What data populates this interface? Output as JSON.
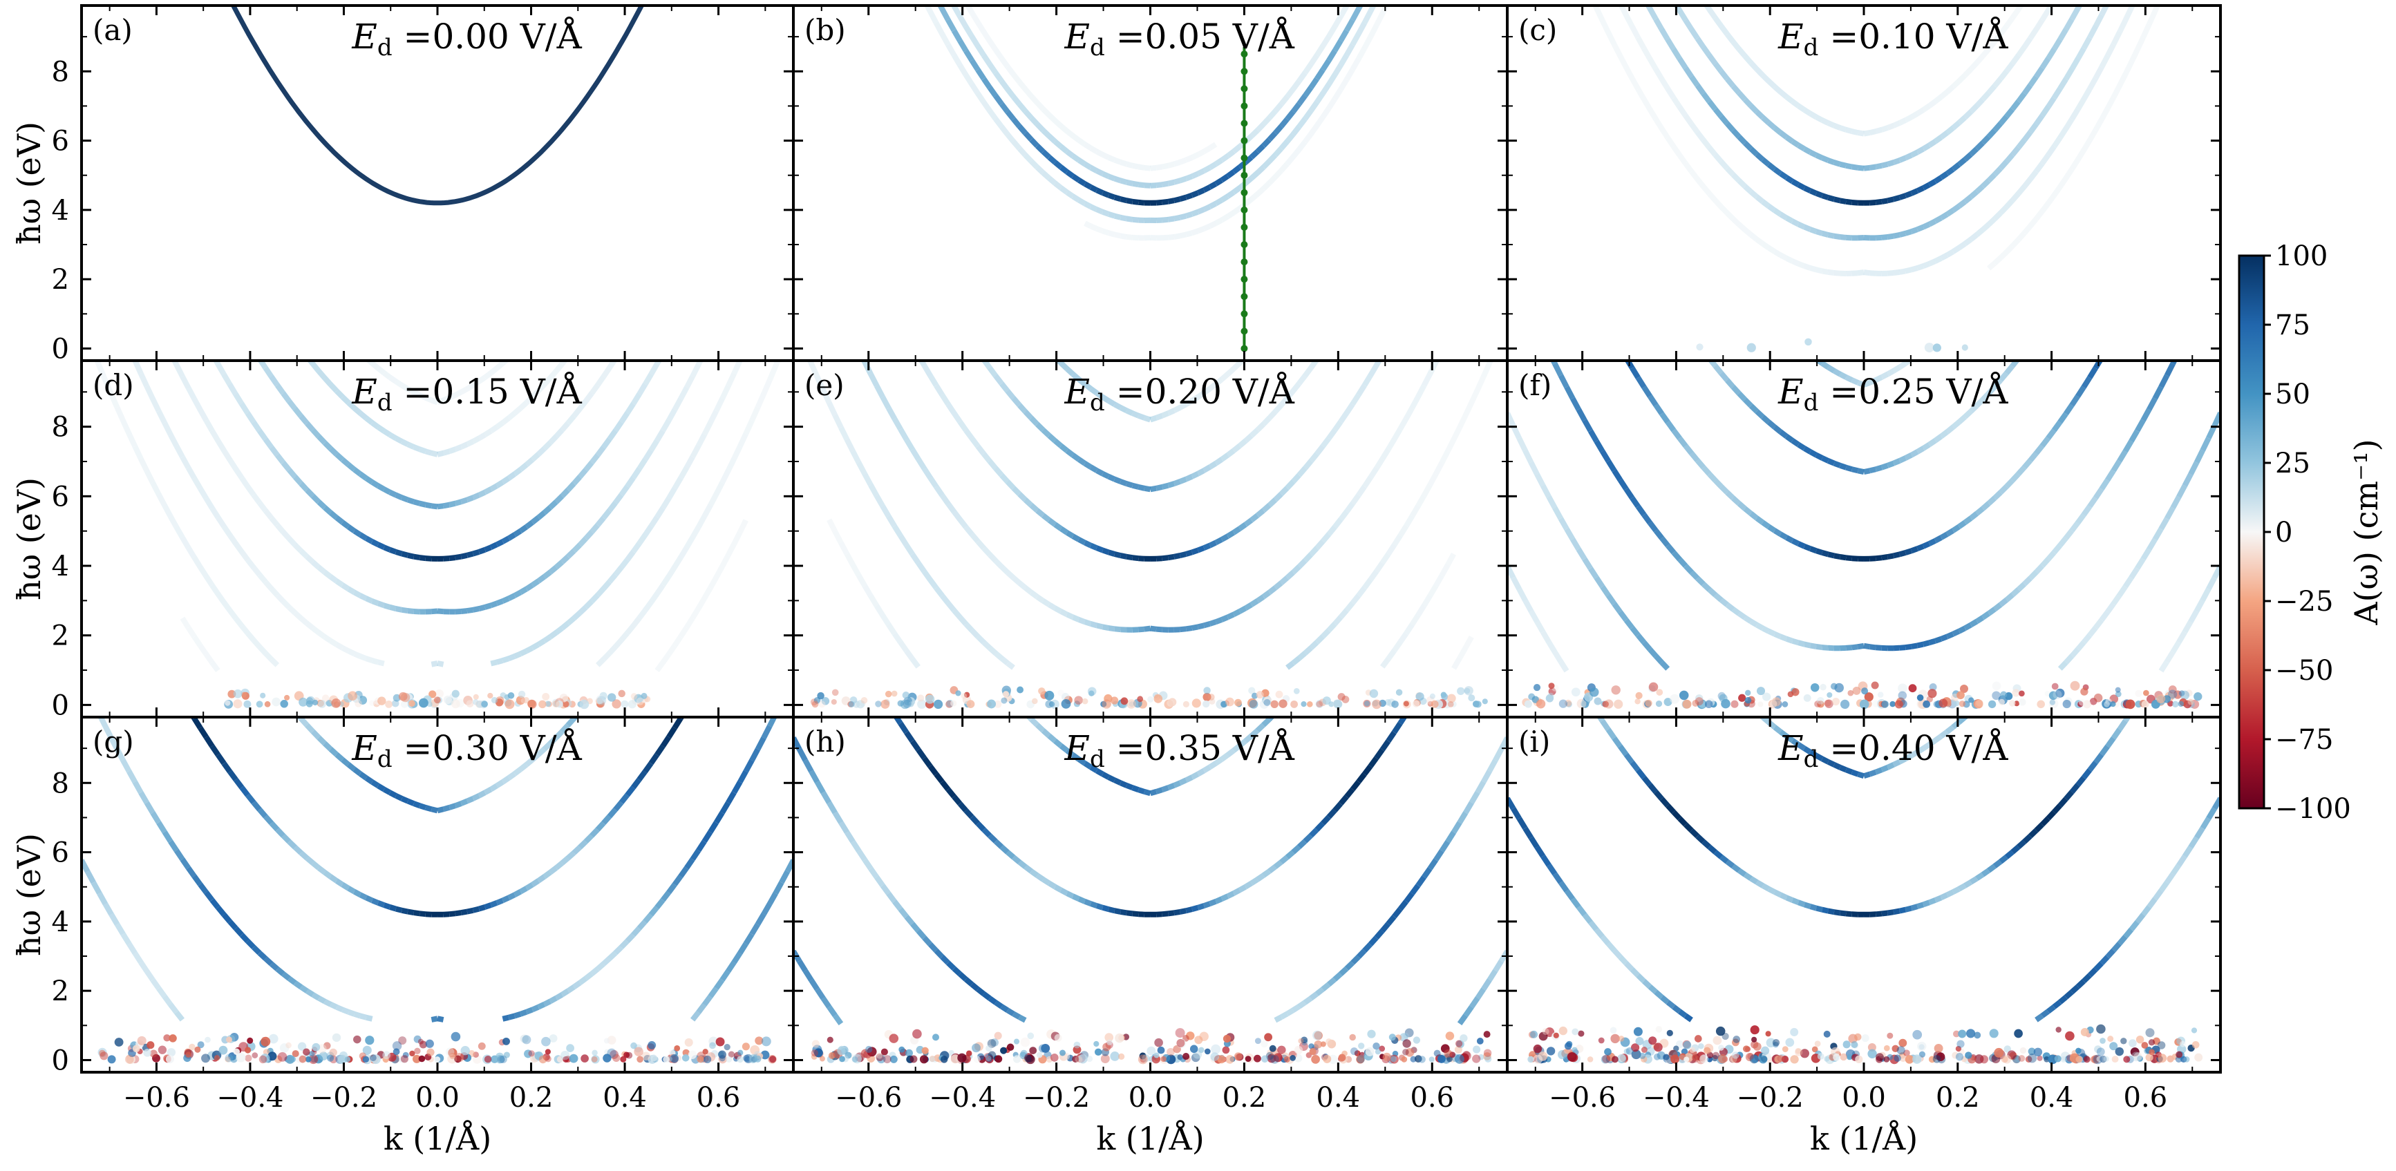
{
  "chart_data": {
    "type": "heatmap",
    "rows": 3,
    "cols": 3,
    "xlabel": "k (1/Å)",
    "ylabel": "ħω (eV)",
    "xlim": [
      -0.76,
      0.76
    ],
    "ylim": [
      -0.35,
      9.9
    ],
    "xticks": [
      -0.6,
      -0.4,
      -0.2,
      0.0,
      0.2,
      0.4,
      0.6
    ],
    "xtick_labels": [
      "−0.6",
      "−0.4",
      "−0.2",
      "0.0",
      "0.2",
      "0.4",
      "0.6"
    ],
    "yticks": [
      0,
      2,
      4,
      6,
      8
    ],
    "ytick_labels": [
      "0",
      "2",
      "4",
      "6",
      "8"
    ],
    "grid": false,
    "colormap": {
      "name": "RdBu",
      "min_color": "#67001f",
      "mid_color": "#f7f7f7",
      "max_color": "#053061",
      "range": [
        -100,
        100
      ]
    },
    "colorbar": {
      "label": "A(ω) (cm⁻¹)",
      "ticks": [
        100,
        75,
        50,
        25,
        0,
        -25,
        -50,
        -75,
        -100
      ],
      "tick_labels": [
        "100",
        "75",
        "50",
        "25",
        "0",
        "−25",
        "−50",
        "−75",
        "−100"
      ]
    },
    "base_band": {
      "gap_eV": 4.2,
      "curvature_eV_A2": 30
    },
    "cut_marker": {
      "panel": "b",
      "k": 0.2,
      "color": "#1a7a1a"
    },
    "panels": [
      {
        "label": "(a)",
        "field_label": "E_d =0.00 V/Å",
        "Ed": 0.0
      },
      {
        "label": "(b)",
        "field_label": "E_d =0.05 V/Å",
        "Ed": 0.05
      },
      {
        "label": "(c)",
        "field_label": "E_d =0.10 V/Å",
        "Ed": 0.1
      },
      {
        "label": "(d)",
        "field_label": "E_d =0.15 V/Å",
        "Ed": 0.15
      },
      {
        "label": "(e)",
        "field_label": "E_d =0.20 V/Å",
        "Ed": 0.2
      },
      {
        "label": "(f)",
        "field_label": "E_d =0.25 V/Å",
        "Ed": 0.25
      },
      {
        "label": "(g)",
        "field_label": "E_d =0.30 V/Å",
        "Ed": 0.3
      },
      {
        "label": "(h)",
        "field_label": "E_d =0.35 V/Å",
        "Ed": 0.35
      },
      {
        "label": "(i)",
        "field_label": "E_d =0.40 V/Å",
        "Ed": 0.4
      }
    ]
  }
}
